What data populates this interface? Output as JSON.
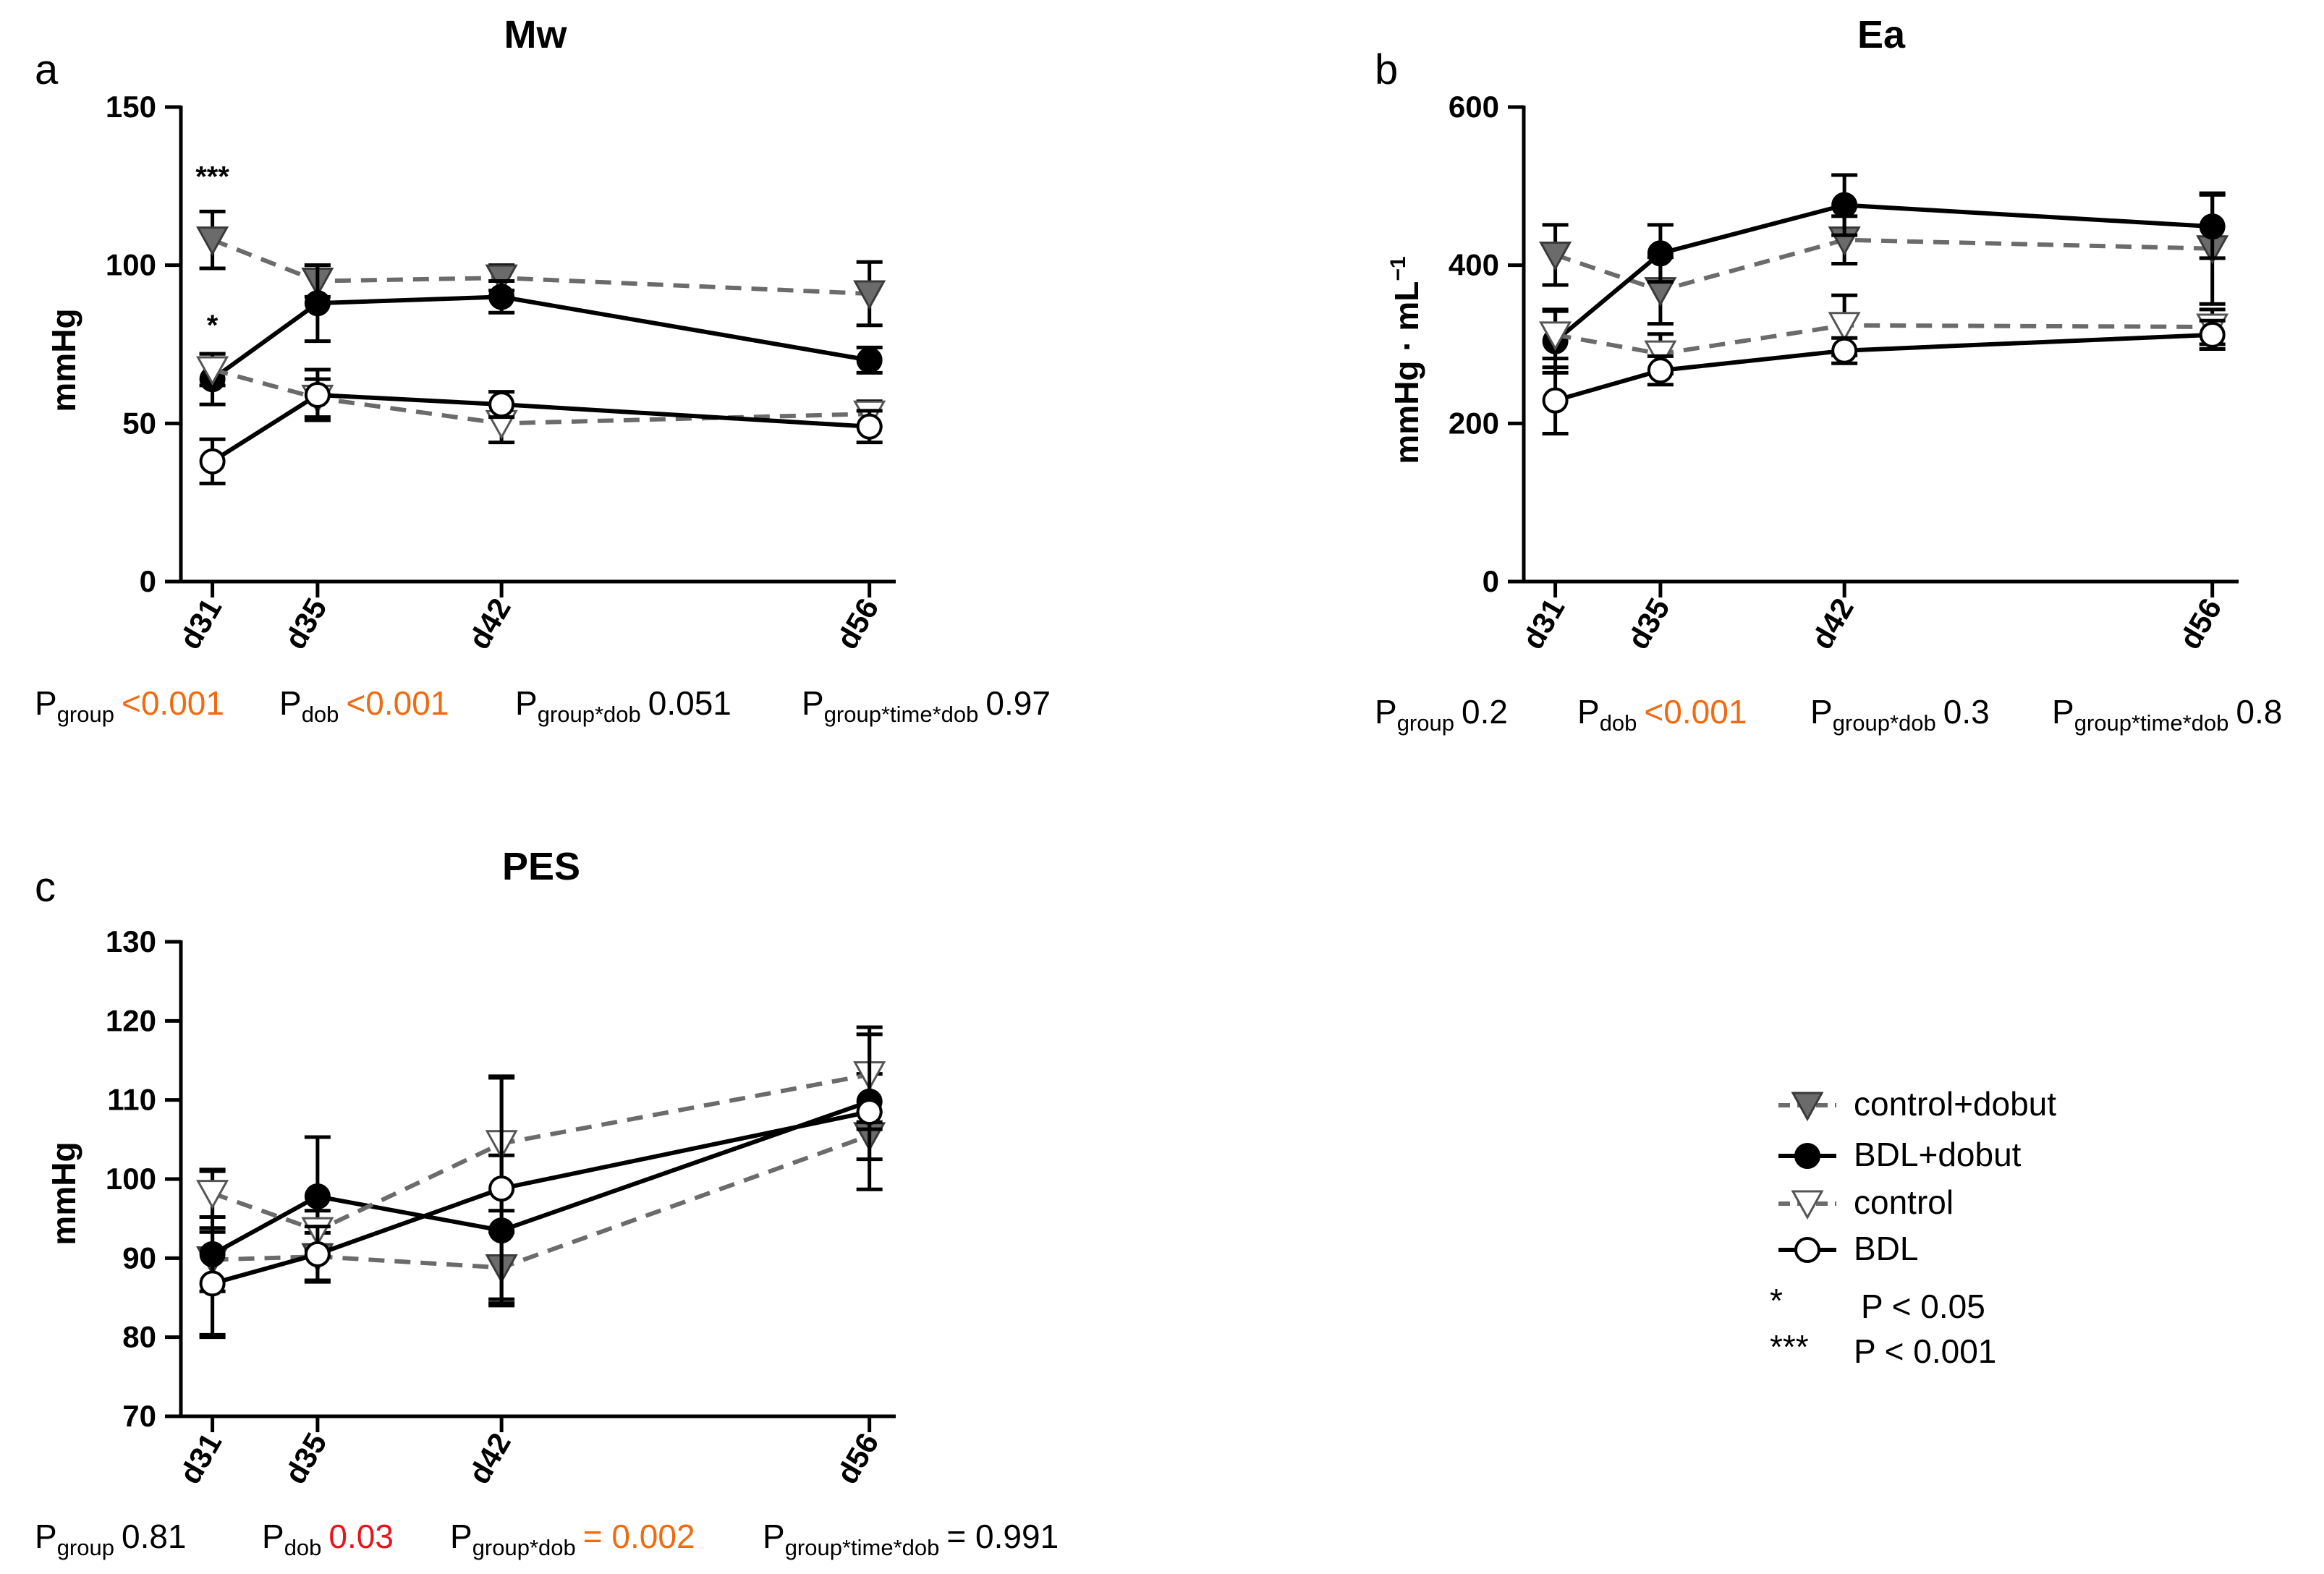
{
  "chart_data": [
    {
      "type": "line",
      "panel_letter": "a",
      "title": "Mw",
      "xlabel": "",
      "ylabel": "mmHg",
      "categories": [
        "d31",
        "d35",
        "d42",
        "d56"
      ],
      "x": [
        31,
        35,
        42,
        56
      ],
      "ylim": [
        0,
        150
      ],
      "yticks": [
        "0",
        "50",
        "100",
        "150"
      ],
      "series": [
        {
          "name": "control+dobut",
          "marker": "triangle-down-filled",
          "line": "dashed",
          "color": "#6b6b6b",
          "values": [
            108,
            95,
            96,
            91
          ],
          "errors": [
            9,
            5,
            4,
            10
          ]
        },
        {
          "name": "BDL+dobut",
          "marker": "circle-filled",
          "line": "solid",
          "color": "#000000",
          "values": [
            64,
            88,
            90,
            70
          ],
          "errors": [
            8,
            12,
            5,
            4
          ]
        },
        {
          "name": "control",
          "marker": "triangle-down-open",
          "line": "dashed",
          "color": "#6b6b6b",
          "values": [
            67,
            58,
            50,
            53
          ],
          "errors": [
            5,
            6,
            6,
            4
          ]
        },
        {
          "name": "BDL",
          "marker": "circle-open",
          "line": "solid",
          "color": "#000000",
          "values": [
            38,
            59,
            56,
            49
          ],
          "errors": [
            7,
            8,
            4,
            5
          ]
        }
      ],
      "annotations": [
        {
          "text": "***",
          "x": "d31",
          "y": 125
        },
        {
          "text": "*",
          "x": "d31",
          "y": 78
        }
      ],
      "stats": [
        {
          "label": "P",
          "sub": "group",
          "value": "<0.001",
          "color": "#f26a10"
        },
        {
          "label": "P",
          "sub": "dob",
          "value": "<0.001",
          "color": "#f26a10"
        },
        {
          "label": "P",
          "sub": "group*dob",
          "value": "0.051",
          "color": "#000000"
        },
        {
          "label": "P",
          "sub": "group*time*dob",
          "value": "0.97",
          "color": "#000000"
        }
      ]
    },
    {
      "type": "line",
      "panel_letter": "b",
      "title": "Ea",
      "xlabel": "",
      "ylabel": "mmHg · mL",
      "ylabel_sup": "−1",
      "categories": [
        "d31",
        "d35",
        "d42",
        "d56"
      ],
      "x": [
        31,
        35,
        42,
        56
      ],
      "ylim": [
        0,
        600
      ],
      "yticks": [
        "0",
        "200",
        "400",
        "600"
      ],
      "series": [
        {
          "name": "control+dobut",
          "marker": "triangle-down-filled",
          "line": "dashed",
          "color": "#6b6b6b",
          "values": [
            413,
            368,
            432,
            421
          ],
          "errors": [
            38,
            42,
            30,
            70
          ]
        },
        {
          "name": "BDL+dobut",
          "marker": "circle-filled",
          "line": "solid",
          "color": "#000000",
          "values": [
            304,
            415,
            476,
            449
          ],
          "errors": [
            40,
            36,
            38,
            40
          ]
        },
        {
          "name": "control",
          "marker": "triangle-down-open",
          "line": "dashed",
          "color": "#6b6b6b",
          "values": [
            312,
            288,
            324,
            322
          ],
          "errors": [
            30,
            25,
            38,
            22
          ]
        },
        {
          "name": "BDL",
          "marker": "circle-open",
          "line": "solid",
          "color": "#000000",
          "values": [
            229,
            267,
            292,
            312
          ],
          "errors": [
            42,
            18,
            16,
            18
          ]
        }
      ],
      "stats": [
        {
          "label": "P",
          "sub": "group",
          "value": "0.2",
          "color": "#000000"
        },
        {
          "label": "P",
          "sub": "dob",
          "value": "<0.001",
          "color": "#f26a10"
        },
        {
          "label": "P",
          "sub": "group*dob",
          "value": "0.3",
          "color": "#000000"
        },
        {
          "label": "P",
          "sub": "group*time*dob",
          "value": "0.8",
          "color": "#000000"
        }
      ]
    },
    {
      "type": "line",
      "panel_letter": "c",
      "title": "PES",
      "xlabel": "",
      "ylabel": "mmHg",
      "categories": [
        "d31",
        "d35",
        "d42",
        "d56"
      ],
      "x": [
        31,
        35,
        42,
        56
      ],
      "ylim": [
        70,
        130
      ],
      "yticks": [
        "70",
        "80",
        "90",
        "100",
        "110",
        "120",
        "130"
      ],
      "series": [
        {
          "name": "control+dobut",
          "marker": "triangle-down-filled",
          "line": "dashed",
          "color": "#6b6b6b",
          "values": [
            89.8,
            90.2,
            88.8,
            105.5
          ],
          "errors": [
            4,
            3,
            4.5,
            3
          ]
        },
        {
          "name": "BDL+dobut",
          "marker": "circle-filled",
          "line": "solid",
          "color": "#000000",
          "values": [
            90.5,
            97.8,
            93.5,
            109.8
          ],
          "errors": [
            10.5,
            7.5,
            9.5,
            3.5
          ]
        },
        {
          "name": "control",
          "marker": "triangle-down-open",
          "line": "dashed",
          "color": "#6b6b6b",
          "values": [
            98.2,
            93.5,
            104.5,
            113.2
          ],
          "errors": [
            3,
            2.5,
            8.5,
            6
          ]
        },
        {
          "name": "BDL",
          "marker": "circle-open",
          "line": "solid",
          "color": "#000000",
          "values": [
            86.8,
            90.5,
            98.8,
            108.5
          ],
          "errors": [
            6.5,
            3.5,
            14,
            9.8
          ]
        }
      ],
      "stats": [
        {
          "label": "P",
          "sub": "group",
          "value": "0.81",
          "color": "#000000"
        },
        {
          "label": "P",
          "sub": "dob",
          "value": "0.03",
          "color": "#e8141c"
        },
        {
          "label": "P",
          "sub": "group*dob",
          "value": "= 0.002",
          "color": "#f26a10"
        },
        {
          "label": "P",
          "sub": "group*time*dob",
          "value": "= 0.991",
          "color": "#000000"
        }
      ]
    }
  ],
  "legend": {
    "items": [
      {
        "label": "control+dobut",
        "marker": "triangle-down-filled",
        "line": "dashed"
      },
      {
        "label": "BDL+dobut",
        "marker": "circle-filled",
        "line": "solid"
      },
      {
        "label": "control",
        "marker": "triangle-down-open",
        "line": "dashed"
      },
      {
        "label": "BDL",
        "marker": "circle-open",
        "line": "solid"
      }
    ],
    "significance": [
      {
        "symbol": "*",
        "text": "P < 0.05"
      },
      {
        "symbol": "***",
        "text": "P < 0.001"
      }
    ]
  }
}
